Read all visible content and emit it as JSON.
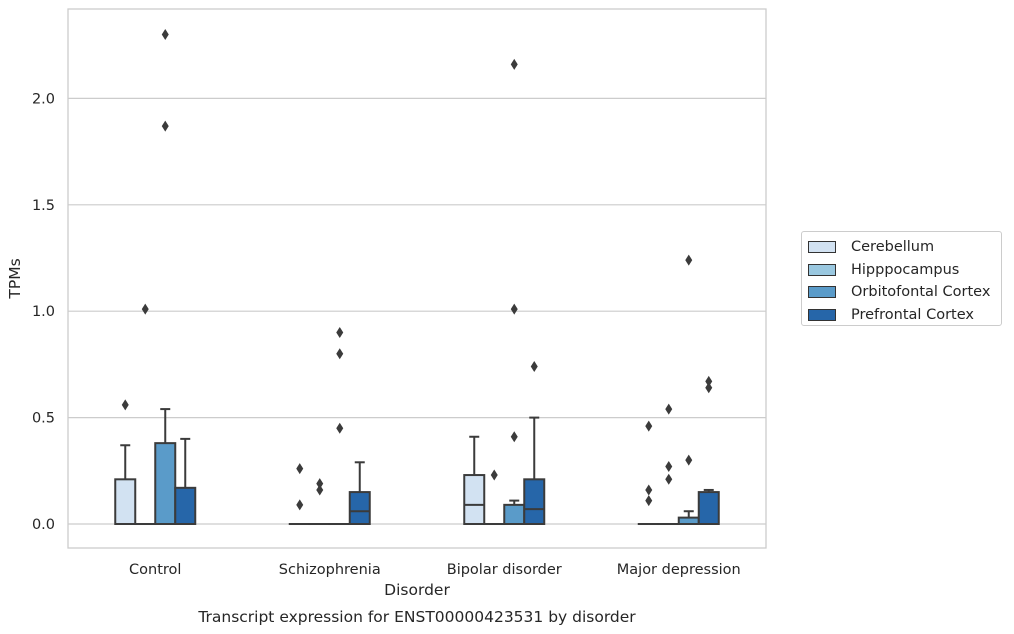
{
  "chart_data": {
    "type": "box",
    "title": "Transcript expression for ENST00000423531 by disorder",
    "xlabel": "Disorder",
    "ylabel": "TPMs",
    "categories": [
      "Control",
      "Schizophrenia",
      "Bipolar disorder",
      "Major depression"
    ],
    "ylim": [
      -0.11,
      2.42
    ],
    "yticks": [
      0.0,
      0.5,
      1.0,
      1.5,
      2.0
    ],
    "ytick_labels": [
      "0.0",
      "0.5",
      "1.0",
      "1.5",
      "2.0"
    ],
    "grid": "horizontal",
    "legend_placement": "right",
    "series": [
      {
        "name": "Cerebellum",
        "color": "#d2e2f2",
        "boxes": [
          {
            "q1": 0.0,
            "median": 0.0,
            "q3": 0.21,
            "whisker_low": 0.0,
            "whisker_high": 0.37,
            "outliers": [
              0.56
            ]
          },
          {
            "q1": 0.0,
            "median": 0.0,
            "q3": 0.0,
            "whisker_low": 0.0,
            "whisker_high": 0.0,
            "outliers": [
              0.26,
              0.09
            ]
          },
          {
            "q1": 0.0,
            "median": 0.09,
            "q3": 0.23,
            "whisker_low": 0.0,
            "whisker_high": 0.41,
            "outliers": []
          },
          {
            "q1": 0.0,
            "median": 0.0,
            "q3": 0.0,
            "whisker_low": 0.0,
            "whisker_high": 0.0,
            "outliers": [
              0.46,
              0.16,
              0.11
            ]
          }
        ]
      },
      {
        "name": "Hipppocampus",
        "color": "#9ac8e0",
        "boxes": [
          {
            "q1": 0.0,
            "median": 0.0,
            "q3": 0.0,
            "whisker_low": 0.0,
            "whisker_high": 0.0,
            "outliers": [
              1.01
            ]
          },
          {
            "q1": 0.0,
            "median": 0.0,
            "q3": 0.0,
            "whisker_low": 0.0,
            "whisker_high": 0.0,
            "outliers": [
              0.19,
              0.16
            ]
          },
          {
            "q1": 0.0,
            "median": 0.0,
            "q3": 0.0,
            "whisker_low": 0.0,
            "whisker_high": 0.0,
            "outliers": [
              0.23
            ]
          },
          {
            "q1": 0.0,
            "median": 0.0,
            "q3": 0.0,
            "whisker_low": 0.0,
            "whisker_high": 0.0,
            "outliers": [
              0.54,
              0.27,
              0.21
            ]
          }
        ]
      },
      {
        "name": "Orbitofontal Cortex",
        "color": "#5a9bc9",
        "boxes": [
          {
            "q1": 0.0,
            "median": 0.0,
            "q3": 0.38,
            "whisker_low": 0.0,
            "whisker_high": 0.54,
            "outliers": [
              2.3,
              1.87
            ]
          },
          {
            "q1": 0.0,
            "median": 0.0,
            "q3": 0.0,
            "whisker_low": 0.0,
            "whisker_high": 0.0,
            "outliers": [
              0.9,
              0.8,
              0.45
            ]
          },
          {
            "q1": 0.0,
            "median": 0.0,
            "q3": 0.09,
            "whisker_low": 0.0,
            "whisker_high": 0.11,
            "outliers": [
              2.16,
              1.01,
              0.41
            ]
          },
          {
            "q1": 0.0,
            "median": 0.0,
            "q3": 0.03,
            "whisker_low": 0.0,
            "whisker_high": 0.06,
            "outliers": [
              1.24,
              0.3
            ]
          }
        ]
      },
      {
        "name": "Prefrontal Cortex",
        "color": "#2666a9",
        "boxes": [
          {
            "q1": 0.0,
            "median": 0.0,
            "q3": 0.17,
            "whisker_low": 0.0,
            "whisker_high": 0.4,
            "outliers": []
          },
          {
            "q1": 0.0,
            "median": 0.06,
            "q3": 0.15,
            "whisker_low": 0.0,
            "whisker_high": 0.29,
            "outliers": []
          },
          {
            "q1": 0.0,
            "median": 0.07,
            "q3": 0.21,
            "whisker_low": 0.0,
            "whisker_high": 0.5,
            "outliers": [
              0.74
            ]
          },
          {
            "q1": 0.0,
            "median": 0.0,
            "q3": 0.15,
            "whisker_low": 0.0,
            "whisker_high": 0.16,
            "outliers": [
              0.67,
              0.64
            ]
          }
        ]
      }
    ]
  }
}
